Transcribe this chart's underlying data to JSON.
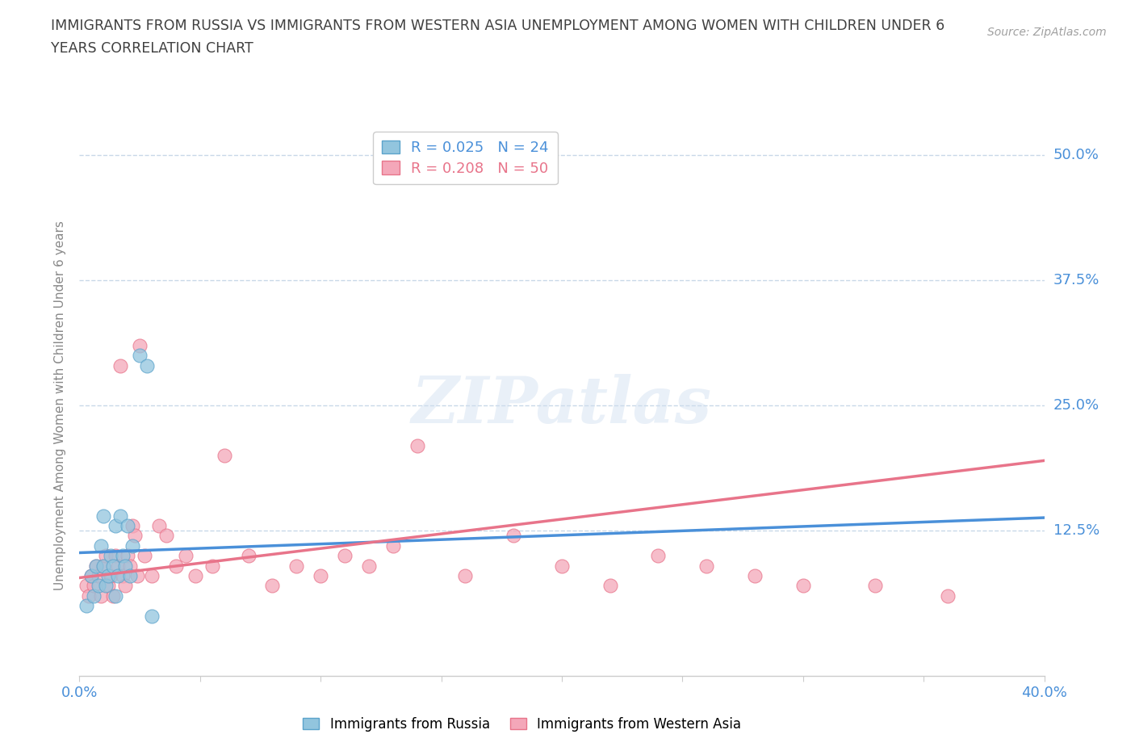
{
  "title_line1": "IMMIGRANTS FROM RUSSIA VS IMMIGRANTS FROM WESTERN ASIA UNEMPLOYMENT AMONG WOMEN WITH CHILDREN UNDER 6",
  "title_line2": "YEARS CORRELATION CHART",
  "source_text": "Source: ZipAtlas.com",
  "ylabel": "Unemployment Among Women with Children Under 6 years",
  "xlim": [
    0.0,
    0.4
  ],
  "ylim": [
    -0.02,
    0.52
  ],
  "yticks": [
    0.0,
    0.125,
    0.25,
    0.375,
    0.5
  ],
  "ytick_labels": [
    "",
    "12.5%",
    "25.0%",
    "37.5%",
    "50.0%"
  ],
  "legend_russia_R": "R = 0.025",
  "legend_russia_N": "N = 24",
  "legend_wasia_R": "R = 0.208",
  "legend_wasia_N": "N = 50",
  "color_russia": "#92C5DE",
  "color_russia_edge": "#5BA3CB",
  "color_wasia": "#F4A7B9",
  "color_wasia_edge": "#E8748A",
  "color_trendline_russia": "#4A90D9",
  "color_trendline_wasia": "#E8748A",
  "color_axis_labels": "#4A90D9",
  "color_title": "#404040",
  "color_grid": "#C8D8E8",
  "background_color": "#FFFFFF",
  "watermark_text": "ZIPatlas",
  "russia_x": [
    0.003,
    0.005,
    0.006,
    0.007,
    0.008,
    0.009,
    0.01,
    0.01,
    0.011,
    0.012,
    0.013,
    0.014,
    0.015,
    0.015,
    0.016,
    0.017,
    0.018,
    0.019,
    0.02,
    0.021,
    0.022,
    0.025,
    0.028,
    0.03
  ],
  "russia_y": [
    0.05,
    0.08,
    0.06,
    0.09,
    0.07,
    0.11,
    0.09,
    0.14,
    0.07,
    0.08,
    0.1,
    0.09,
    0.06,
    0.13,
    0.08,
    0.14,
    0.1,
    0.09,
    0.13,
    0.08,
    0.11,
    0.3,
    0.29,
    0.04
  ],
  "wasia_x": [
    0.003,
    0.004,
    0.005,
    0.006,
    0.007,
    0.008,
    0.009,
    0.01,
    0.011,
    0.012,
    0.013,
    0.014,
    0.015,
    0.016,
    0.017,
    0.018,
    0.019,
    0.02,
    0.021,
    0.022,
    0.023,
    0.024,
    0.025,
    0.027,
    0.03,
    0.033,
    0.036,
    0.04,
    0.044,
    0.048,
    0.055,
    0.06,
    0.07,
    0.08,
    0.09,
    0.1,
    0.11,
    0.12,
    0.13,
    0.14,
    0.16,
    0.18,
    0.2,
    0.22,
    0.24,
    0.26,
    0.28,
    0.3,
    0.33,
    0.36
  ],
  "wasia_y": [
    0.07,
    0.06,
    0.08,
    0.07,
    0.09,
    0.08,
    0.06,
    0.09,
    0.1,
    0.07,
    0.08,
    0.06,
    0.1,
    0.09,
    0.29,
    0.08,
    0.07,
    0.1,
    0.09,
    0.13,
    0.12,
    0.08,
    0.31,
    0.1,
    0.08,
    0.13,
    0.12,
    0.09,
    0.1,
    0.08,
    0.09,
    0.2,
    0.1,
    0.07,
    0.09,
    0.08,
    0.1,
    0.09,
    0.11,
    0.21,
    0.08,
    0.12,
    0.09,
    0.07,
    0.1,
    0.09,
    0.08,
    0.07,
    0.07,
    0.06
  ],
  "trendline_russia_x0": 0.0,
  "trendline_russia_x1": 0.4,
  "trendline_russia_y0": 0.103,
  "trendline_russia_y1": 0.138,
  "trendline_wasia_x0": 0.0,
  "trendline_wasia_x1": 0.4,
  "trendline_wasia_y0": 0.078,
  "trendline_wasia_y1": 0.195
}
